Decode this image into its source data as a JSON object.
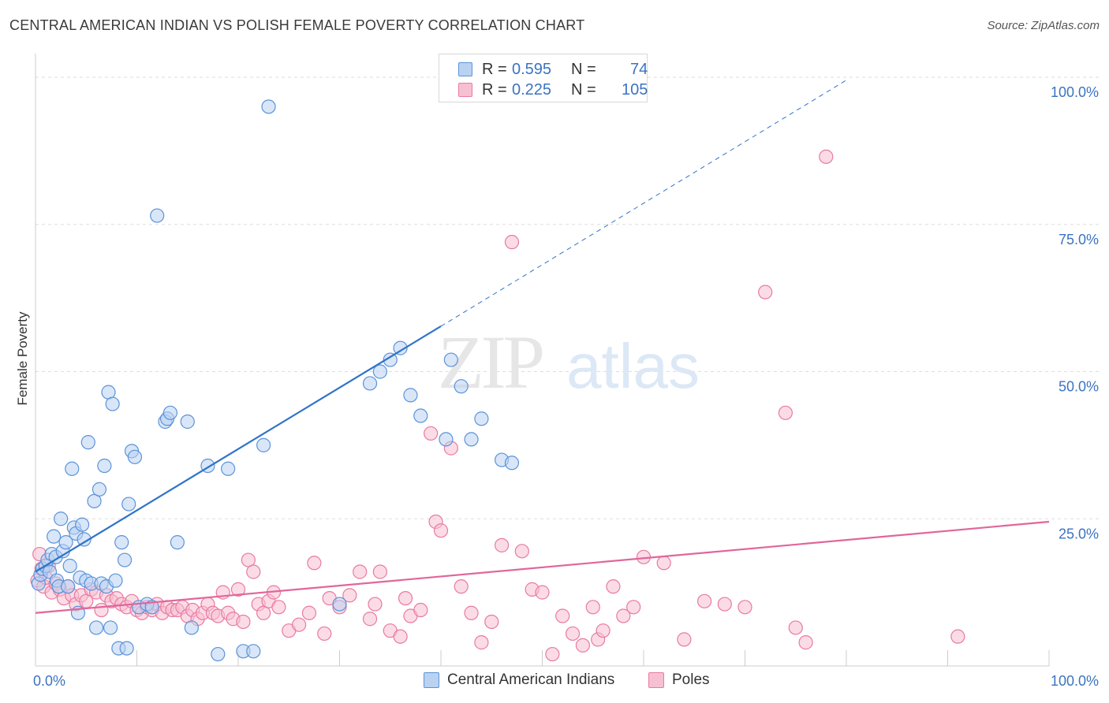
{
  "title": "CENTRAL AMERICAN INDIAN VS POLISH FEMALE POVERTY CORRELATION CHART",
  "source": "Source: ZipAtlas.com",
  "watermark": {
    "zip": "ZIP",
    "atlas": "atlas"
  },
  "colors": {
    "blue": "#5b93d9",
    "blue_fill": "#b9d2f2",
    "blue_line": "#2f74c8",
    "pink": "#e97aa1",
    "pink_fill": "#f7c0d2",
    "pink_line": "#e0679a",
    "axis_label": "#3b73c2",
    "grid": "#dddddd"
  },
  "legend_top": [
    {
      "r_label": "R =",
      "r_value": "0.595",
      "n_label": "N =",
      "n_value": "74"
    },
    {
      "r_label": "R =",
      "r_value": "0.225",
      "n_label": "N =",
      "n_value": "105"
    }
  ],
  "legend_bottom": [
    "Central American Indians",
    "Poles"
  ],
  "chart_data": {
    "type": "scatter",
    "title": "CENTRAL AMERICAN INDIAN VS POLISH FEMALE POVERTY CORRELATION CHART",
    "xlabel": "",
    "ylabel": "Female Poverty",
    "xlim": [
      0,
      100
    ],
    "ylim": [
      0,
      100
    ],
    "x_tick_labels": [
      "0.0%",
      "100.0%"
    ],
    "y_tick_labels": [
      "25.0%",
      "50.0%",
      "75.0%",
      "100.0%"
    ],
    "y_ticks": [
      25,
      50,
      75,
      100
    ],
    "grid": true,
    "legend_position": "top-center",
    "series": [
      {
        "name": "Central American Indians",
        "r": 0.595,
        "n": 74,
        "trend": {
          "x": [
            0,
            40
          ],
          "y": [
            16.0,
            57.7
          ],
          "dashed_to": [
            80,
            99.5
          ]
        },
        "points": [
          [
            0.3,
            14.0
          ],
          [
            0.5,
            15.5
          ],
          [
            0.7,
            16.5
          ],
          [
            1.0,
            17.0
          ],
          [
            1.2,
            18.0
          ],
          [
            1.4,
            16.0
          ],
          [
            1.6,
            19.0
          ],
          [
            1.8,
            22.0
          ],
          [
            2.0,
            18.5
          ],
          [
            2.1,
            14.5
          ],
          [
            2.3,
            13.5
          ],
          [
            2.5,
            25.0
          ],
          [
            2.7,
            19.5
          ],
          [
            3.0,
            21.0
          ],
          [
            3.2,
            13.5
          ],
          [
            3.4,
            17.0
          ],
          [
            3.6,
            33.5
          ],
          [
            3.8,
            23.5
          ],
          [
            4.0,
            22.5
          ],
          [
            4.2,
            9.0
          ],
          [
            4.4,
            15.0
          ],
          [
            4.6,
            24.0
          ],
          [
            4.8,
            21.5
          ],
          [
            5.0,
            14.5
          ],
          [
            5.2,
            38.0
          ],
          [
            5.5,
            14.0
          ],
          [
            5.8,
            28.0
          ],
          [
            6.0,
            6.5
          ],
          [
            6.3,
            30.0
          ],
          [
            6.5,
            14.0
          ],
          [
            6.8,
            34.0
          ],
          [
            7.0,
            13.5
          ],
          [
            7.2,
            46.5
          ],
          [
            7.4,
            6.5
          ],
          [
            7.6,
            44.5
          ],
          [
            7.9,
            14.5
          ],
          [
            8.2,
            3.0
          ],
          [
            8.5,
            21.0
          ],
          [
            8.8,
            18.0
          ],
          [
            9.0,
            3.0
          ],
          [
            9.2,
            27.5
          ],
          [
            9.5,
            36.5
          ],
          [
            9.8,
            35.5
          ],
          [
            10.2,
            10.0
          ],
          [
            11.0,
            10.5
          ],
          [
            11.5,
            10.0
          ],
          [
            12.0,
            76.5
          ],
          [
            12.8,
            41.5
          ],
          [
            13.0,
            42.0
          ],
          [
            13.3,
            43.0
          ],
          [
            14.0,
            21.0
          ],
          [
            15.0,
            41.5
          ],
          [
            15.4,
            6.5
          ],
          [
            17.0,
            34.0
          ],
          [
            18.0,
            2.0
          ],
          [
            19.0,
            33.5
          ],
          [
            20.5,
            2.5
          ],
          [
            21.5,
            2.5
          ],
          [
            22.5,
            37.5
          ],
          [
            23.0,
            95.0
          ],
          [
            30.0,
            10.5
          ],
          [
            33.0,
            48.0
          ],
          [
            34.0,
            50.0
          ],
          [
            35.0,
            52.0
          ],
          [
            36.0,
            54.0
          ],
          [
            37.0,
            46.0
          ],
          [
            38.0,
            42.5
          ],
          [
            40.5,
            38.5
          ],
          [
            41.0,
            52.0
          ],
          [
            42.0,
            47.5
          ],
          [
            43.0,
            38.5
          ],
          [
            44.0,
            42.0
          ],
          [
            46.0,
            35.0
          ],
          [
            47.0,
            34.5
          ]
        ]
      },
      {
        "name": "Poles",
        "r": 0.225,
        "n": 105,
        "trend": {
          "x": [
            0,
            100
          ],
          "y": [
            9.0,
            24.5
          ]
        },
        "points": [
          [
            0.2,
            14.5
          ],
          [
            0.4,
            19.0
          ],
          [
            0.6,
            16.5
          ],
          [
            0.8,
            13.5
          ],
          [
            1.0,
            15.0
          ],
          [
            1.3,
            17.0
          ],
          [
            1.6,
            12.5
          ],
          [
            2.0,
            14.0
          ],
          [
            2.4,
            13.0
          ],
          [
            2.8,
            11.5
          ],
          [
            3.2,
            13.5
          ],
          [
            3.6,
            12.0
          ],
          [
            4.0,
            10.5
          ],
          [
            4.5,
            12.0
          ],
          [
            5.0,
            11.0
          ],
          [
            5.5,
            13.0
          ],
          [
            6.0,
            12.5
          ],
          [
            6.5,
            9.5
          ],
          [
            7.0,
            12.0
          ],
          [
            7.5,
            11.0
          ],
          [
            8.0,
            11.5
          ],
          [
            8.5,
            10.5
          ],
          [
            9.0,
            10.0
          ],
          [
            9.5,
            11.0
          ],
          [
            10.0,
            9.5
          ],
          [
            10.5,
            9.0
          ],
          [
            11.0,
            10.0
          ],
          [
            11.5,
            9.5
          ],
          [
            12.0,
            10.5
          ],
          [
            12.5,
            9.0
          ],
          [
            13.0,
            10.0
          ],
          [
            13.5,
            9.5
          ],
          [
            14.0,
            9.5
          ],
          [
            14.5,
            10.0
          ],
          [
            15.0,
            8.5
          ],
          [
            15.5,
            9.5
          ],
          [
            16.0,
            8.0
          ],
          [
            16.5,
            9.0
          ],
          [
            17.0,
            10.5
          ],
          [
            17.5,
            9.0
          ],
          [
            18.0,
            8.5
          ],
          [
            18.5,
            12.5
          ],
          [
            19.0,
            9.0
          ],
          [
            19.5,
            8.0
          ],
          [
            20.0,
            13.0
          ],
          [
            20.5,
            7.5
          ],
          [
            21.0,
            18.0
          ],
          [
            21.5,
            16.0
          ],
          [
            22.0,
            10.5
          ],
          [
            22.5,
            9.0
          ],
          [
            23.0,
            11.0
          ],
          [
            23.5,
            12.5
          ],
          [
            24.0,
            10.0
          ],
          [
            25.0,
            6.0
          ],
          [
            26.0,
            7.0
          ],
          [
            27.0,
            9.0
          ],
          [
            27.5,
            17.5
          ],
          [
            28.5,
            5.5
          ],
          [
            29.0,
            11.5
          ],
          [
            30.0,
            10.0
          ],
          [
            31.0,
            12.0
          ],
          [
            32.0,
            16.0
          ],
          [
            33.0,
            8.0
          ],
          [
            33.5,
            10.5
          ],
          [
            34.0,
            16.0
          ],
          [
            35.0,
            6.0
          ],
          [
            36.0,
            5.0
          ],
          [
            36.5,
            11.5
          ],
          [
            37.0,
            8.5
          ],
          [
            38.0,
            9.5
          ],
          [
            39.0,
            39.5
          ],
          [
            39.5,
            24.5
          ],
          [
            40.0,
            23.0
          ],
          [
            41.0,
            37.0
          ],
          [
            42.0,
            13.5
          ],
          [
            43.0,
            9.0
          ],
          [
            44.0,
            4.0
          ],
          [
            45.0,
            7.5
          ],
          [
            46.0,
            20.5
          ],
          [
            47.0,
            72.0
          ],
          [
            48.0,
            19.5
          ],
          [
            49.0,
            13.0
          ],
          [
            50.0,
            12.5
          ],
          [
            51.0,
            2.0
          ],
          [
            52.0,
            8.5
          ],
          [
            53.0,
            5.5
          ],
          [
            54.0,
            3.5
          ],
          [
            55.0,
            10.0
          ],
          [
            55.5,
            4.5
          ],
          [
            56.0,
            6.0
          ],
          [
            57.0,
            13.5
          ],
          [
            58.0,
            8.5
          ],
          [
            59.0,
            10.0
          ],
          [
            60.0,
            18.5
          ],
          [
            62.0,
            17.5
          ],
          [
            64.0,
            4.5
          ],
          [
            66.0,
            11.0
          ],
          [
            68.0,
            10.5
          ],
          [
            70.0,
            10.0
          ],
          [
            72.0,
            63.5
          ],
          [
            74.0,
            43.0
          ],
          [
            75.0,
            6.5
          ],
          [
            76.0,
            4.0
          ],
          [
            78.0,
            86.5
          ],
          [
            91.0,
            5.0
          ]
        ]
      }
    ]
  }
}
